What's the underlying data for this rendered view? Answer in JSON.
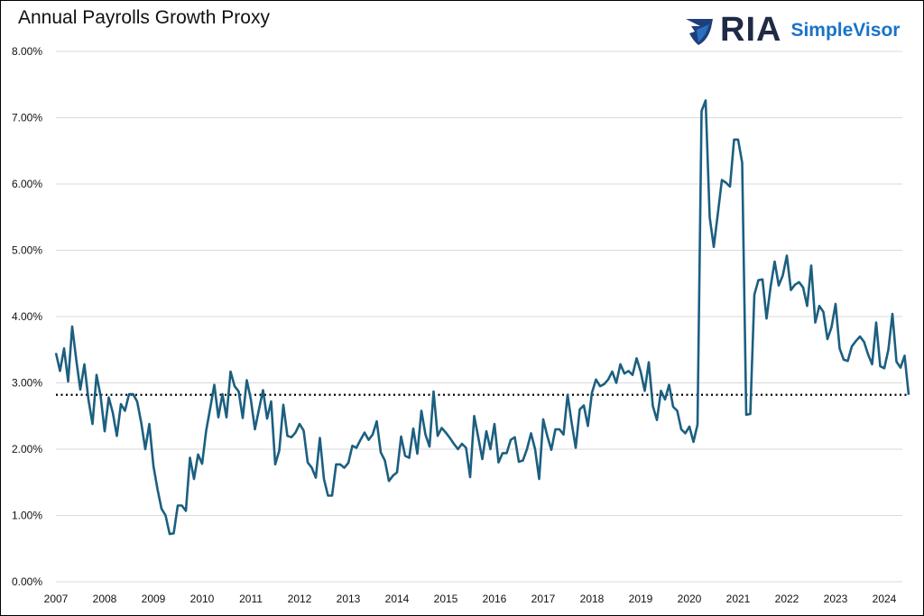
{
  "title": "Annual Payrolls Growth Proxy",
  "logo": {
    "mark": "RIA",
    "brand": "SimpleVisor"
  },
  "colors": {
    "line": "#1c5f80",
    "grid": "#d9d9d9",
    "reference": "#000000",
    "brand_blue": "#1a73c8",
    "brand_navy": "#1f2a44"
  },
  "chart_data": {
    "type": "line",
    "title": "Annual Payrolls Growth Proxy",
    "xlabel": "",
    "ylabel": "",
    "ylim": [
      0,
      8
    ],
    "y_ticks": [
      "0.00%",
      "1.00%",
      "2.00%",
      "3.00%",
      "4.00%",
      "5.00%",
      "6.00%",
      "7.00%",
      "8.00%"
    ],
    "x_ticks": [
      "2007",
      "2008",
      "2009",
      "2010",
      "2011",
      "2012",
      "2013",
      "2014",
      "2015",
      "2016",
      "2017",
      "2018",
      "2019",
      "2020",
      "2021",
      "2022",
      "2023",
      "2024"
    ],
    "grid": "horizontal",
    "frequency": "monthly",
    "start": "2007-01",
    "reference_line": {
      "value": 2.82,
      "style": "dotted"
    },
    "values": [
      3.45,
      3.18,
      3.52,
      3.02,
      3.85,
      3.35,
      2.9,
      3.28,
      2.75,
      2.38,
      3.12,
      2.8,
      2.27,
      2.78,
      2.55,
      2.2,
      2.68,
      2.58,
      2.83,
      2.83,
      2.72,
      2.4,
      2.0,
      2.38,
      1.75,
      1.4,
      1.1,
      1.0,
      0.72,
      0.73,
      1.15,
      1.15,
      1.07,
      1.87,
      1.55,
      1.92,
      1.78,
      2.28,
      2.62,
      2.97,
      2.48,
      2.83,
      2.48,
      3.17,
      2.95,
      2.87,
      2.47,
      3.04,
      2.75,
      2.3,
      2.6,
      2.89,
      2.46,
      2.72,
      1.77,
      1.98,
      2.67,
      2.2,
      2.18,
      2.25,
      2.38,
      2.28,
      1.8,
      1.72,
      1.57,
      2.17,
      1.55,
      1.3,
      1.3,
      1.77,
      1.77,
      1.72,
      1.79,
      2.05,
      2.02,
      2.14,
      2.25,
      2.14,
      2.22,
      2.42,
      1.95,
      1.83,
      1.52,
      1.6,
      1.65,
      2.19,
      1.9,
      1.87,
      2.31,
      1.93,
      2.58,
      2.22,
      2.04,
      2.87,
      2.2,
      2.32,
      2.25,
      2.17,
      2.08,
      2.0,
      2.08,
      2.02,
      1.58,
      2.5,
      2.18,
      1.85,
      2.27,
      2.0,
      2.38,
      1.8,
      1.94,
      1.94,
      2.14,
      2.18,
      1.81,
      1.83,
      2.0,
      2.24,
      2.0,
      1.55,
      2.45,
      2.2,
      1.99,
      2.3,
      2.3,
      2.22,
      2.82,
      2.4,
      2.02,
      2.6,
      2.66,
      2.35,
      2.85,
      3.05,
      2.95,
      2.98,
      3.05,
      3.17,
      3.0,
      3.28,
      3.14,
      3.18,
      3.12,
      3.37,
      3.17,
      2.88,
      3.31,
      2.65,
      2.44,
      2.88,
      2.75,
      2.97,
      2.64,
      2.58,
      2.3,
      2.24,
      2.34,
      2.11,
      2.37,
      7.1,
      7.26,
      5.5,
      5.05,
      5.55,
      6.06,
      6.02,
      5.96,
      6.67,
      6.67,
      6.32,
      2.52,
      2.53,
      4.33,
      4.55,
      4.56,
      3.97,
      4.45,
      4.83,
      4.47,
      4.62,
      4.92,
      4.4,
      4.48,
      4.52,
      4.44,
      4.16,
      4.77,
      3.91,
      4.16,
      4.07,
      3.66,
      3.84,
      4.19,
      3.52,
      3.35,
      3.33,
      3.55,
      3.63,
      3.7,
      3.62,
      3.43,
      3.28,
      3.91,
      3.25,
      3.22,
      3.5,
      4.04,
      3.32,
      3.23,
      3.41,
      2.82
    ]
  }
}
